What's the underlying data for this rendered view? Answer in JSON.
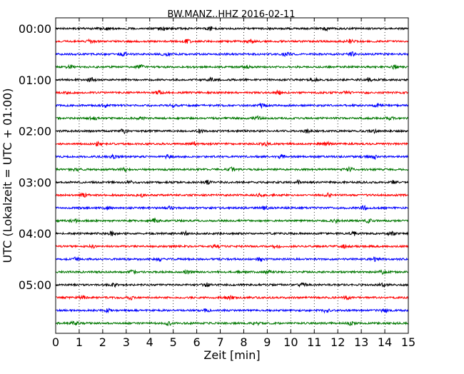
{
  "chart_data": {
    "type": "line",
    "title": "BW.MANZ..HHZ 2016-02-11",
    "xlabel": "Zeit  [min]",
    "ylabel": "UTC (Lokalzeit = UTC + 01:00)",
    "xlim": [
      0,
      15
    ],
    "x_ticks": [
      "0",
      "1",
      "2",
      "3",
      "4",
      "5",
      "6",
      "7",
      "8",
      "9",
      "10",
      "11",
      "12",
      "13",
      "14",
      "15"
    ],
    "y_ticks": [
      "00:00",
      "01:00",
      "02:00",
      "03:00",
      "04:00",
      "05:00"
    ],
    "grid": "vertical dotted lines at each minute",
    "trace_colors": [
      "#000000",
      "#ff0000",
      "#0000ff",
      "#007700"
    ],
    "traces": [
      {
        "start": "00:00",
        "bursts_min": [
          2.1,
          4.6,
          6.6,
          11.5
        ]
      },
      {
        "start": "00:15",
        "bursts_min": [
          1.5,
          5.6,
          8.3,
          12.5
        ]
      },
      {
        "start": "00:30",
        "bursts_min": [
          2.9,
          4.7,
          9.8,
          12.6
        ]
      },
      {
        "start": "00:45",
        "bursts_min": [
          0.6,
          3.6,
          8.1,
          14.4
        ]
      },
      {
        "start": "01:00",
        "bursts_min": [
          1.5,
          6.6,
          11.0,
          13.3
        ]
      },
      {
        "start": "01:15",
        "bursts_min": [
          0.6,
          4.4,
          9.5,
          12.4
        ]
      },
      {
        "start": "01:30",
        "bursts_min": [
          2.1,
          5.0,
          8.8,
          13.7
        ]
      },
      {
        "start": "01:45",
        "bursts_min": [
          1.6,
          3.6,
          8.6,
          14.2
        ]
      },
      {
        "start": "02:00",
        "bursts_min": [
          2.9,
          6.2,
          10.7,
          13.5
        ]
      },
      {
        "start": "02:15",
        "bursts_min": [
          1.8,
          5.9,
          8.9,
          11.5
        ]
      },
      {
        "start": "02:30",
        "bursts_min": [
          2.5,
          4.8,
          9.6,
          13.6
        ]
      },
      {
        "start": "02:45",
        "bursts_min": [
          0.9,
          2.9,
          7.5,
          12.5
        ]
      },
      {
        "start": "03:00",
        "bursts_min": [
          3.1,
          6.5,
          10.3,
          14.4
        ]
      },
      {
        "start": "03:15",
        "bursts_min": [
          1.2,
          3.6,
          8.7,
          11.6
        ]
      },
      {
        "start": "03:30",
        "bursts_min": [
          2.2,
          4.8,
          8.9,
          13.1
        ]
      },
      {
        "start": "03:45",
        "bursts_min": [
          0.8,
          4.2,
          11.9,
          13.3
        ]
      },
      {
        "start": "04:00",
        "bursts_min": [
          2.4,
          5.5,
          12.7,
          14.3
        ]
      },
      {
        "start": "04:15",
        "bursts_min": [
          1.5,
          6.8,
          9.4,
          12.3
        ]
      },
      {
        "start": "04:30",
        "bursts_min": [
          0.9,
          4.4,
          8.7,
          13.6
        ]
      },
      {
        "start": "04:45",
        "bursts_min": [
          3.3,
          5.6,
          9.0,
          13.9
        ]
      },
      {
        "start": "05:00",
        "bursts_min": [
          2.5,
          6.4,
          10.5,
          13.9
        ]
      },
      {
        "start": "05:15",
        "bursts_min": [
          1.1,
          3.2,
          7.4,
          12.4
        ]
      },
      {
        "start": "05:30",
        "bursts_min": [
          2.2,
          6.4,
          11.5,
          14.0
        ]
      },
      {
        "start": "05:45",
        "bursts_min": [
          0.8,
          4.8,
          8.5,
          12.6
        ]
      }
    ]
  }
}
